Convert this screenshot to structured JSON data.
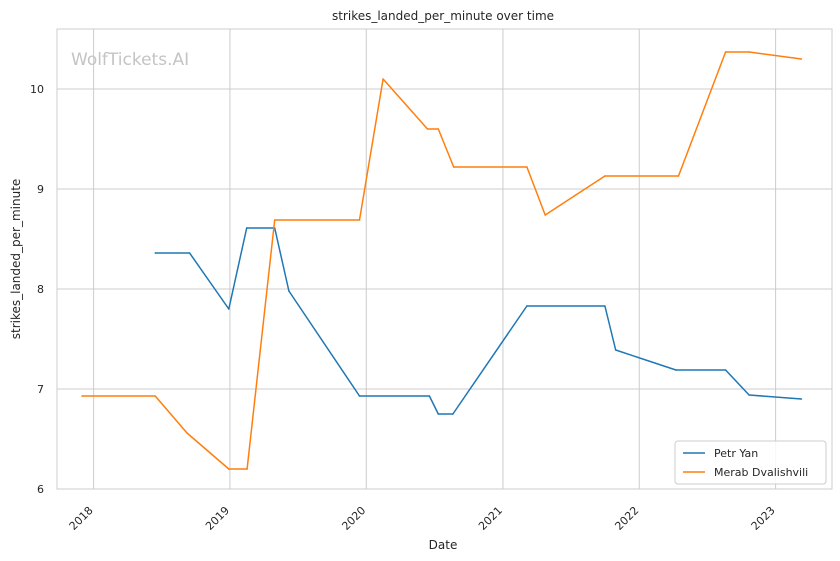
{
  "chart_data": {
    "type": "line",
    "title": "strikes_landed_per_minute over time",
    "xlabel": "Date",
    "ylabel": "strikes_landed_per_minute",
    "watermark": "WolfTickets.AI",
    "xlim": [
      "2017-09-25",
      "2023-06-01"
    ],
    "ylim": [
      6,
      10.6
    ],
    "x_ticks": [
      "2018-01-01",
      "2019-01-01",
      "2020-01-01",
      "2021-01-01",
      "2022-01-01",
      "2023-01-01"
    ],
    "x_tick_labels": [
      "2018",
      "2019",
      "2020",
      "2021",
      "2022",
      "2023"
    ],
    "y_ticks": [
      6,
      7,
      8,
      9,
      10
    ],
    "y_tick_labels": [
      "6",
      "7",
      "8",
      "9",
      "10"
    ],
    "grid": true,
    "legend_position": "bottom-right",
    "series": [
      {
        "name": "Petr Yan",
        "color": "#1f77b4",
        "points": [
          [
            "2018-06-15",
            8.36
          ],
          [
            "2018-09-15",
            8.36
          ],
          [
            "2018-12-29",
            7.8
          ],
          [
            "2019-02-15",
            8.61
          ],
          [
            "2019-05-01",
            8.61
          ],
          [
            "2019-06-08",
            7.98
          ],
          [
            "2019-12-14",
            6.93
          ],
          [
            "2020-06-18",
            6.93
          ],
          [
            "2020-07-12",
            6.75
          ],
          [
            "2020-08-20",
            6.75
          ],
          [
            "2021-03-06",
            7.83
          ],
          [
            "2021-10-01",
            7.83
          ],
          [
            "2021-10-30",
            7.39
          ],
          [
            "2022-04-09",
            7.19
          ],
          [
            "2022-08-20",
            7.19
          ],
          [
            "2022-10-22",
            6.94
          ],
          [
            "2023-03-11",
            6.9
          ]
        ]
      },
      {
        "name": "Merab Dvalishvili",
        "color": "#ff7f0e",
        "points": [
          [
            "2017-12-01",
            6.93
          ],
          [
            "2018-06-15",
            6.93
          ],
          [
            "2018-09-08",
            6.56
          ],
          [
            "2018-12-29",
            6.2
          ],
          [
            "2019-02-16",
            6.2
          ],
          [
            "2019-05-01",
            8.69
          ],
          [
            "2019-12-14",
            8.69
          ],
          [
            "2020-02-15",
            10.1
          ],
          [
            "2020-06-13",
            9.6
          ],
          [
            "2020-07-12",
            9.6
          ],
          [
            "2020-08-22",
            9.22
          ],
          [
            "2021-03-06",
            9.22
          ],
          [
            "2021-04-24",
            8.74
          ],
          [
            "2021-10-01",
            9.13
          ],
          [
            "2022-04-16",
            9.13
          ],
          [
            "2022-08-20",
            10.37
          ],
          [
            "2022-10-22",
            10.37
          ],
          [
            "2023-03-11",
            10.3
          ]
        ]
      }
    ]
  }
}
